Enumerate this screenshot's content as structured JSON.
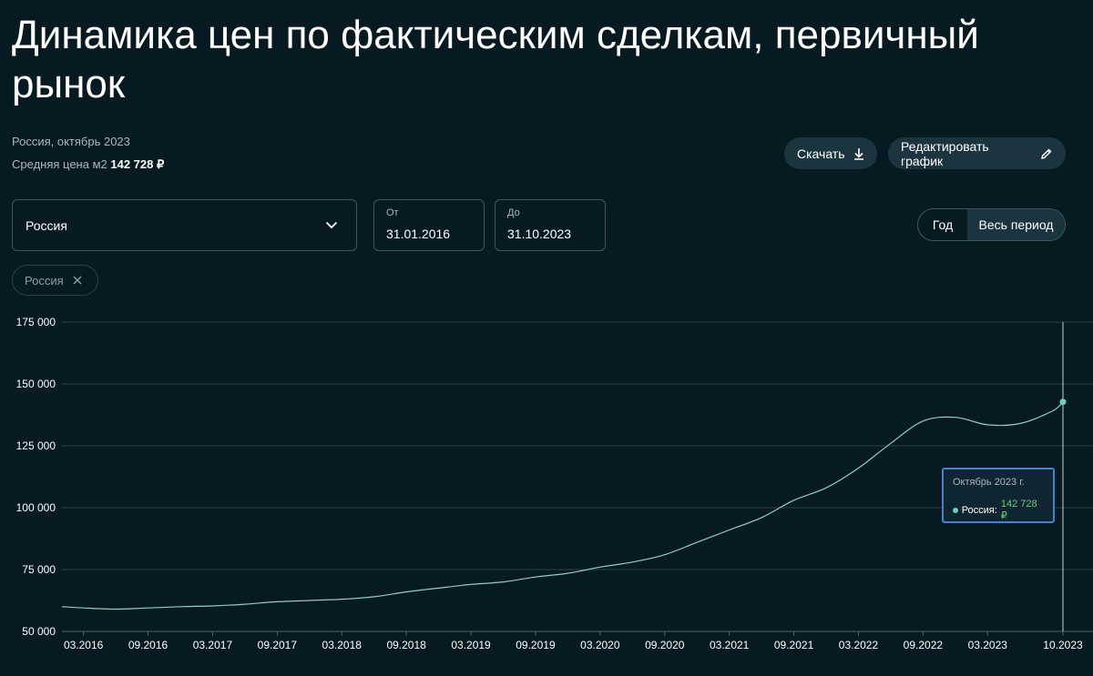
{
  "header": {
    "title": "Динамика цен по фактическим сделкам, первичный рынок",
    "subtitle": "Россия, октябрь 2023",
    "avg_price_label": "Средняя цена м2",
    "avg_price_value": "142 728 ₽"
  },
  "toolbar": {
    "download_label": "Скачать",
    "edit_label": "Редактировать график"
  },
  "filters": {
    "region_value": "Россия",
    "from_label": "От",
    "from_value": "31.01.2016",
    "to_label": "До",
    "to_value": "31.10.2023",
    "period_year": "Год",
    "period_all": "Весь период",
    "period_selected": "Весь период",
    "chip_label": "Россия"
  },
  "tooltip": {
    "title": "Октябрь 2023 г.",
    "series_label": "Россия:",
    "value": "142 728 ₽"
  },
  "colors": {
    "background": "#071a22",
    "line": "#8fcfc4",
    "grid": "#2b4049",
    "tooltip_border": "#4b7fd0",
    "tooltip_value": "#6fcf7a"
  },
  "chart_data": {
    "type": "line",
    "x_tick_labels": [
      "03.2016",
      "09.2016",
      "03.2017",
      "09.2017",
      "03.2018",
      "09.2018",
      "03.2019",
      "09.2019",
      "03.2020",
      "09.2020",
      "03.2021",
      "09.2021",
      "03.2022",
      "09.2022",
      "03.2023",
      "10.2023"
    ],
    "y_tick_labels": [
      "175 000",
      "150 000",
      "125 000",
      "100 000",
      "75 000",
      "50 000"
    ],
    "y_ticks": [
      175000,
      150000,
      125000,
      100000,
      75000,
      50000
    ],
    "ylim": [
      50000,
      175000
    ],
    "x_range": [
      "2016-01",
      "2023-10"
    ],
    "grid": "horizontal",
    "series": [
      {
        "name": "Россия",
        "x": [
          "2016-01",
          "2016-03",
          "2016-06",
          "2016-09",
          "2016-12",
          "2017-03",
          "2017-06",
          "2017-09",
          "2017-12",
          "2018-03",
          "2018-06",
          "2018-09",
          "2018-12",
          "2019-03",
          "2019-06",
          "2019-09",
          "2019-12",
          "2020-03",
          "2020-06",
          "2020-09",
          "2020-12",
          "2021-03",
          "2021-06",
          "2021-09",
          "2021-12",
          "2022-03",
          "2022-06",
          "2022-09",
          "2022-12",
          "2023-03",
          "2023-06",
          "2023-09",
          "2023-10"
        ],
        "y": [
          60000,
          59500,
          59000,
          59500,
          60000,
          60300,
          61000,
          62000,
          62500,
          63000,
          64000,
          66000,
          67500,
          69000,
          70000,
          72000,
          73500,
          76000,
          78000,
          81000,
          86000,
          91000,
          96000,
          103000,
          108000,
          116000,
          126000,
          135000,
          136500,
          133500,
          134000,
          139000,
          142728
        ]
      }
    ]
  }
}
